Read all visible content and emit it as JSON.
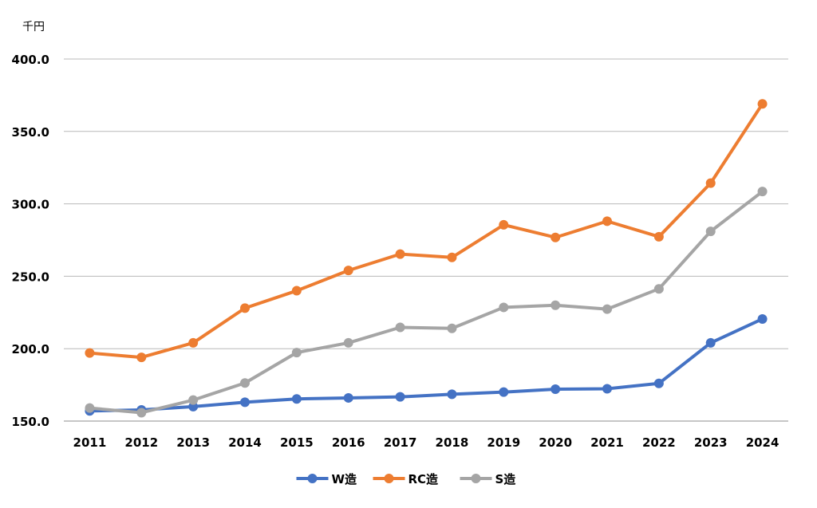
{
  "chart_data": {
    "type": "line",
    "unit_label": "千円",
    "categories": [
      "2011",
      "2012",
      "2013",
      "2014",
      "2015",
      "2016",
      "2017",
      "2018",
      "2019",
      "2020",
      "2021",
      "2022",
      "2023",
      "2024"
    ],
    "ylim": [
      150,
      400
    ],
    "yticks": [
      150,
      200,
      250,
      300,
      350,
      400
    ],
    "ytick_labels": [
      "150.0",
      "200.0",
      "250.0",
      "300.0",
      "350.0",
      "400.0"
    ],
    "grid": true,
    "legend_position": "bottom",
    "series": [
      {
        "name": "W造",
        "color": "#4472c4",
        "values": [
          157.0,
          157.7,
          160.0,
          163.0,
          165.3,
          166.0,
          166.7,
          168.5,
          170.0,
          172.0,
          172.3,
          176.0,
          204.0,
          220.5
        ]
      },
      {
        "name": "RC造",
        "color": "#ed7d31",
        "values": [
          197.0,
          194.0,
          204.0,
          228.0,
          240.0,
          254.0,
          265.3,
          263.0,
          285.5,
          276.8,
          288.0,
          277.3,
          314.3,
          369.0
        ]
      },
      {
        "name": "S造",
        "color": "#a5a5a5",
        "values": [
          159.0,
          155.8,
          164.5,
          176.3,
          197.3,
          204.0,
          214.7,
          214.0,
          228.5,
          230.0,
          227.3,
          241.3,
          281.0,
          308.5
        ]
      }
    ]
  }
}
